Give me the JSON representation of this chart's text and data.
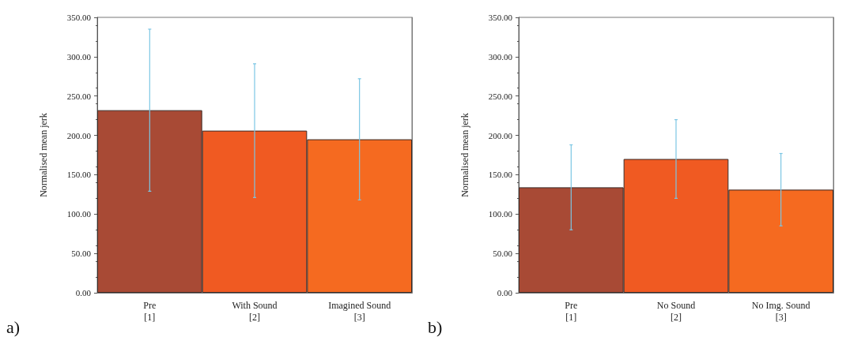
{
  "chart_data": [
    {
      "type": "bar",
      "ylabel": "Normalised mean jerk",
      "categories": [
        "Pre\n[1]",
        "With Sound\n[2]",
        "Imagined Sound\n[3]"
      ],
      "values": [
        232,
        206,
        195
      ],
      "errors": [
        103,
        85,
        77
      ],
      "colors": [
        "#a84a35",
        "#f05a22",
        "#f56a20"
      ],
      "ylim": [
        0,
        350
      ],
      "yticks": [
        {
          "value": 0,
          "label": "0.00"
        },
        {
          "value": 50,
          "label": "50.00"
        },
        {
          "value": 100,
          "label": "100.00"
        },
        {
          "value": 150,
          "label": "150.00"
        },
        {
          "value": 200,
          "label": "200.00"
        },
        {
          "value": 250,
          "label": "250.00"
        },
        {
          "value": 300,
          "label": "300.00"
        },
        {
          "value": 350,
          "label": "350.00"
        }
      ],
      "grid": false,
      "annotations": [
        "a)"
      ]
    },
    {
      "type": "bar",
      "ylabel": "Normalised mean jerk",
      "categories": [
        "Pre\n[1]",
        "No Sound\n[2]",
        "No Img. Sound\n[3]"
      ],
      "values": [
        134,
        170,
        131
      ],
      "errors": [
        54,
        50,
        46
      ],
      "colors": [
        "#a84a35",
        "#f05a22",
        "#f56a20"
      ],
      "ylim": [
        0,
        350
      ],
      "yticks": [
        {
          "value": 0,
          "label": "0.00"
        },
        {
          "value": 50,
          "label": "50.00"
        },
        {
          "value": 100,
          "label": "100.00"
        },
        {
          "value": 150,
          "label": "150.00"
        },
        {
          "value": 200,
          "label": "200.00"
        },
        {
          "value": 250,
          "label": "250.00"
        },
        {
          "value": 300,
          "label": "300.00"
        },
        {
          "value": 350,
          "label": "350.00"
        }
      ],
      "grid": false,
      "annotations": [
        "b)"
      ]
    }
  ]
}
